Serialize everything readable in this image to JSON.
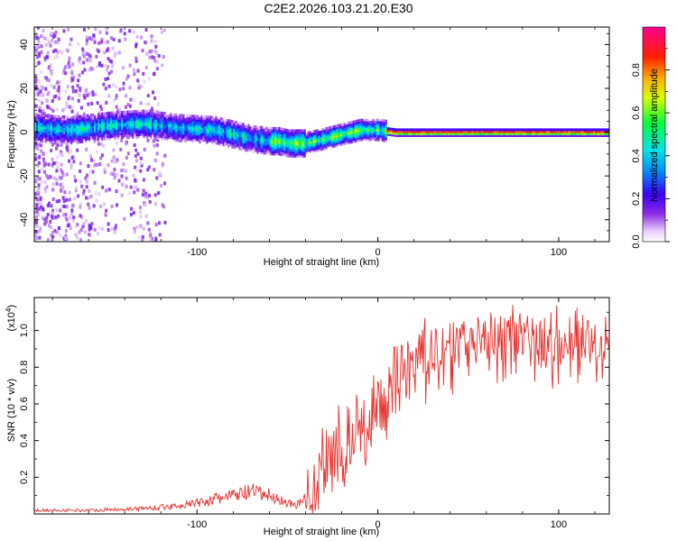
{
  "title": "C2E2.2026.103.21.20.E30",
  "chart_data": [
    {
      "type": "heatmap",
      "title": "C2E2.2026.103.21.20.E30",
      "xlabel": "Height of straight line (km)",
      "ylabel": "Frequency (Hz)",
      "xlim": [
        -190,
        128
      ],
      "ylim": [
        -50,
        48
      ],
      "xticks": [
        -100,
        0,
        100
      ],
      "xtick_labels": [
        "-100",
        "0",
        "100"
      ],
      "yticks": [
        -40,
        -20,
        0,
        20,
        40
      ],
      "ytick_labels": [
        "-40",
        "-20",
        "0",
        "20",
        "40"
      ],
      "grid": false,
      "colorbar": {
        "label": "Normalized spectral amplitude",
        "range": [
          0,
          1
        ],
        "ticks": [
          0.0,
          0.2,
          0.4,
          0.6,
          0.8
        ],
        "tick_labels": [
          "0.0",
          "0.2",
          "0.4",
          "0.6",
          "0.8"
        ],
        "colormap": "rainbow (white, purple, blue, cyan, green, yellow, orange, red, magenta)"
      },
      "ridge_frequency_hz": {
        "x": [
          -190,
          -170,
          -150,
          -130,
          -110,
          -90,
          -80,
          -70,
          -60,
          -55,
          -50,
          -45,
          -40,
          -30,
          -20,
          -15,
          -10,
          0,
          10,
          20,
          40,
          60,
          80,
          100,
          128
        ],
        "y": [
          2,
          1,
          3,
          4,
          2,
          1,
          -1,
          -3,
          -4,
          -4,
          -5,
          -5,
          -5,
          -3,
          -1,
          0,
          1,
          1,
          0,
          0,
          0,
          0,
          0,
          0,
          0
        ]
      }
    },
    {
      "type": "line",
      "xlabel": "Height of straight line (km)",
      "ylabel": "SNR (10 * v/v)",
      "yscale_label": "(x10",
      "yscale_exponent": "4",
      "xlim": [
        -190,
        128
      ],
      "ylim": [
        0,
        1.18
      ],
      "xticks": [
        -100,
        0,
        100
      ],
      "xtick_labels": [
        "-100",
        "0",
        "100"
      ],
      "yticks": [
        0.2,
        0.4,
        0.6,
        0.8,
        1.0
      ],
      "ytick_labels": [
        "0.2",
        "0.4",
        "0.6",
        "0.8",
        "1.0"
      ],
      "grid": false,
      "series": [
        {
          "name": "SNR",
          "color": "#e8312d",
          "x": [
            -190,
            -160,
            -130,
            -115,
            -100,
            -90,
            -80,
            -70,
            -60,
            -50,
            -45,
            -40,
            -35,
            -30,
            -25,
            -20,
            -15,
            -10,
            -5,
            0,
            5,
            10,
            15,
            20,
            25,
            30,
            40,
            50,
            60,
            70,
            80,
            90,
            100,
            110,
            120,
            128
          ],
          "y": [
            0.02,
            0.02,
            0.03,
            0.04,
            0.06,
            0.08,
            0.1,
            0.12,
            0.1,
            0.06,
            0.05,
            0.08,
            0.14,
            0.3,
            0.32,
            0.36,
            0.4,
            0.45,
            0.52,
            0.58,
            0.65,
            0.72,
            0.78,
            0.82,
            0.86,
            0.9,
            0.93,
            0.97,
            0.98,
            1.0,
            0.98,
            0.96,
            0.97,
            1.0,
            0.98,
            0.98
          ]
        }
      ]
    }
  ]
}
